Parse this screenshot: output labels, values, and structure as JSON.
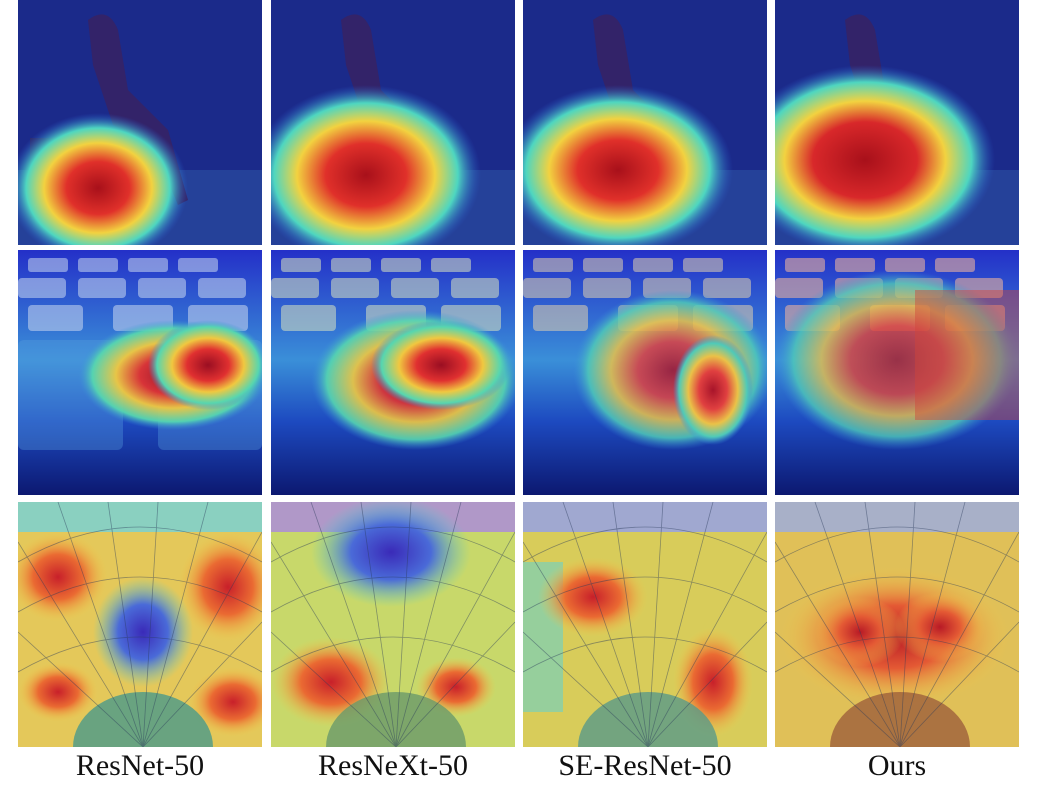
{
  "figure": {
    "column_labels": [
      "ResNet-50",
      "ResNeXt-50",
      "SE-ResNet-50",
      "Ours"
    ],
    "rows": [
      {
        "scene": "person sitting on a bench in a forest",
        "overlay": "heatmap"
      },
      {
        "scene": "close-up of keyboard keys",
        "overlay": "heatmap"
      },
      {
        "scene": "radial wire mesh structure",
        "overlay": "heatmap"
      }
    ],
    "colors": {
      "cold": "#1a2bd6",
      "cool": "#2ec4d8",
      "warm": "#e8e23a",
      "hot": "#d21f1f"
    }
  }
}
